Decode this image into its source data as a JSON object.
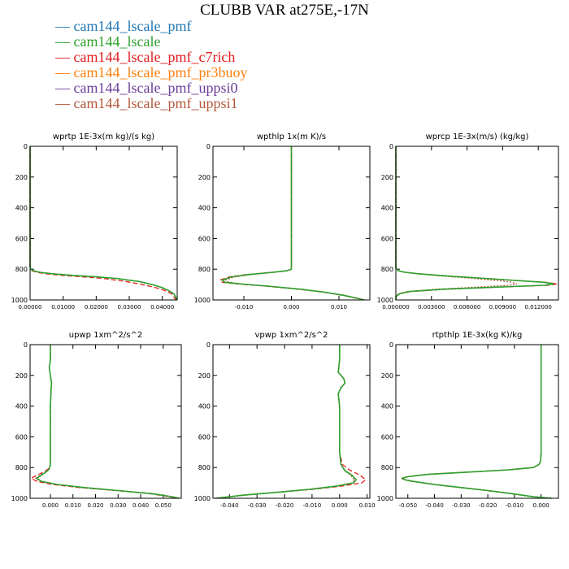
{
  "title": "CLUBB VAR at275E,-17N",
  "legend": [
    {
      "name": "cam144_lscale_pmf",
      "color": "#1f77b4",
      "dash": "solid"
    },
    {
      "name": "cam144_lscale",
      "color": "#2ca02c",
      "dash": "dashed"
    },
    {
      "name": "cam144_lscale_pmf_c7rich",
      "color": "#e41a1c",
      "dash": "dotted"
    },
    {
      "name": "cam144_lscale_pmf_pr3buoy",
      "color": "#ff7f0e",
      "dash": "solid"
    },
    {
      "name": "cam144_lscale_pmf_uppsi0",
      "color": "#6a3d9a",
      "dash": "solid"
    },
    {
      "name": "cam144_lscale_pmf_uppsi1",
      "color": "#b5573a",
      "dash": "solid"
    }
  ],
  "chart_data": [
    {
      "type": "line",
      "title": "wprtp  1E-3x(m kg)/(s kg)",
      "xlim": [
        0,
        0.0445
      ],
      "ylim": [
        1000,
        0
      ],
      "xticks": [
        "0.00000",
        "0.01000",
        "0.02000",
        "0.03000",
        "0.04000"
      ],
      "xtick_values": [
        0,
        0.01,
        0.02,
        0.03,
        0.04
      ],
      "yticks": [
        0,
        200,
        400,
        600,
        800,
        1000
      ],
      "y": [
        0,
        100,
        200,
        300,
        400,
        500,
        600,
        700,
        780,
        800,
        810,
        820,
        830,
        840,
        850,
        860,
        880,
        900,
        920,
        940,
        960,
        980,
        990,
        1000
      ],
      "series": [
        {
          "values": [
            0,
            0,
            0,
            0,
            0,
            0,
            0,
            0,
            0,
            0.0002,
            0.001,
            0.003,
            0.007,
            0.013,
            0.02,
            0.026,
            0.033,
            0.037,
            0.04,
            0.042,
            0.0435,
            0.044,
            0.0442,
            0.0443
          ]
        },
        {
          "values": [
            0,
            0,
            0,
            0,
            0,
            0,
            0,
            0,
            0,
            0.0001,
            0.0006,
            0.002,
            0.005,
            0.01,
            0.016,
            0.022,
            0.029,
            0.034,
            0.038,
            0.041,
            0.0428,
            0.0435,
            0.0438,
            0.044
          ]
        },
        {
          "values": [
            0,
            0,
            0,
            0,
            0,
            0,
            0,
            0,
            0,
            0.0002,
            0.001,
            0.003,
            0.007,
            0.013,
            0.02,
            0.026,
            0.033,
            0.037,
            0.04,
            0.042,
            0.0435,
            0.044,
            0.0442,
            0.0443
          ]
        }
      ]
    },
    {
      "type": "line",
      "title": "wpthlp  1x(m K)/s",
      "xlim": [
        -0.0165,
        0.0165
      ],
      "ylim": [
        1000,
        0
      ],
      "xticks": [
        "-0.010",
        "0.000",
        "0.010"
      ],
      "xtick_values": [
        -0.01,
        0,
        0.01
      ],
      "yticks": [
        0,
        200,
        400,
        600,
        800,
        1000
      ],
      "y": [
        0,
        100,
        200,
        300,
        400,
        500,
        600,
        700,
        780,
        800,
        810,
        820,
        835,
        850,
        870,
        885,
        895,
        910,
        930,
        950,
        970,
        990,
        1000
      ],
      "series": [
        {
          "values": [
            0,
            0,
            0,
            0,
            0,
            0,
            0,
            0,
            0,
            0,
            -0.001,
            -0.004,
            -0.009,
            -0.0125,
            -0.0145,
            -0.014,
            -0.011,
            -0.005,
            0.002,
            0.007,
            0.011,
            0.014,
            0.0152
          ]
        },
        {
          "values": [
            0,
            0,
            0,
            0,
            0,
            0,
            0,
            0,
            0,
            0,
            -0.001,
            -0.004,
            -0.0095,
            -0.013,
            -0.015,
            -0.0145,
            -0.0115,
            -0.0055,
            0.0015,
            0.0068,
            0.0108,
            0.0138,
            0.015
          ]
        },
        {
          "values": [
            0,
            0,
            0,
            0,
            0,
            0,
            0,
            0,
            0,
            0,
            -0.001,
            -0.0035,
            -0.0085,
            -0.012,
            -0.0138,
            -0.0132,
            -0.0105,
            -0.0048,
            0.002,
            0.0072,
            0.0112,
            0.0142,
            0.0155
          ]
        }
      ]
    },
    {
      "type": "line",
      "title": "wprcp  1E-3x(m/s) (kg/kg)",
      "xlim": [
        0,
        0.0137
      ],
      "ylim": [
        1000,
        0
      ],
      "xticks": [
        "0.000000",
        "0.003000",
        "0.006000",
        "0.009000",
        "0.012000"
      ],
      "xtick_values": [
        0,
        0.003,
        0.006,
        0.009,
        0.012
      ],
      "yticks": [
        0,
        200,
        400,
        600,
        800,
        1000
      ],
      "y": [
        0,
        100,
        200,
        300,
        400,
        500,
        600,
        700,
        790,
        810,
        820,
        830,
        845,
        860,
        875,
        885,
        895,
        905,
        915,
        930,
        945,
        960,
        980,
        1000
      ],
      "series": [
        {
          "values": [
            0,
            0,
            0,
            0,
            0,
            0,
            0,
            0,
            0,
            0.0002,
            0.0008,
            0.002,
            0.0045,
            0.0075,
            0.0105,
            0.0125,
            0.0133,
            0.0125,
            0.009,
            0.004,
            0.0012,
            0.0003,
            0,
            0
          ]
        },
        {
          "values": [
            0,
            0,
            0,
            0,
            0,
            0,
            0,
            0,
            0,
            0.0002,
            0.0008,
            0.002,
            0.0045,
            0.0075,
            0.0105,
            0.0126,
            0.0136,
            0.0128,
            0.0092,
            0.0042,
            0.0013,
            0.0003,
            0,
            0
          ]
        },
        {
          "values": [
            0,
            0,
            0,
            0,
            0,
            0,
            0,
            0,
            0,
            0.0002,
            0.0007,
            0.0018,
            0.004,
            0.0065,
            0.0088,
            0.0098,
            0.0102,
            0.0095,
            0.0072,
            0.0034,
            0.001,
            0.0002,
            0,
            0
          ]
        }
      ]
    },
    {
      "type": "line",
      "title": "upwp  1xm^2/s^2",
      "xlim": [
        -0.009,
        0.058
      ],
      "ylim": [
        1000,
        0
      ],
      "xticks": [
        "0.000",
        "0.010",
        "0.020",
        "0.030",
        "0.040",
        "0.050"
      ],
      "xtick_values": [
        0,
        0.01,
        0.02,
        0.03,
        0.04,
        0.05
      ],
      "yticks": [
        0,
        200,
        400,
        600,
        800,
        1000
      ],
      "y": [
        0,
        100,
        150,
        200,
        250,
        300,
        400,
        500,
        600,
        700,
        780,
        810,
        830,
        850,
        870,
        890,
        910,
        930,
        950,
        970,
        990,
        1000
      ],
      "series": [
        {
          "values": [
            0,
            0,
            -0.0005,
            0,
            0.0005,
            0.0003,
            0,
            0,
            0,
            0,
            0,
            -0.0005,
            -0.002,
            -0.004,
            -0.006,
            -0.004,
            0.003,
            0.015,
            0.03,
            0.045,
            0.054,
            0.057
          ]
        },
        {
          "values": [
            0,
            0,
            -0.0005,
            0,
            0.0005,
            0.0003,
            0,
            0,
            0,
            0,
            0,
            -0.001,
            -0.003,
            -0.006,
            -0.0085,
            -0.006,
            0.001,
            0.013,
            0.029,
            0.044,
            0.053,
            0.056
          ]
        },
        {
          "values": [
            0,
            0,
            -0.0005,
            0,
            0.0005,
            0.0003,
            0,
            0,
            0,
            0,
            0,
            -0.0005,
            -0.002,
            -0.0045,
            -0.0065,
            -0.0045,
            0.0025,
            0.0145,
            0.0295,
            0.0448,
            0.0538,
            0.0568
          ]
        }
      ]
    },
    {
      "type": "line",
      "title": "vpwp  1xm^2/s^2",
      "xlim": [
        -0.046,
        0.011
      ],
      "ylim": [
        1000,
        0
      ],
      "xticks": [
        "-0.040",
        "-0.030",
        "-0.020",
        "-0.010",
        "0.000",
        "0.010"
      ],
      "xtick_values": [
        -0.04,
        -0.03,
        -0.02,
        -0.01,
        0,
        0.01
      ],
      "yticks": [
        0,
        200,
        400,
        600,
        800,
        1000
      ],
      "y": [
        0,
        100,
        180,
        220,
        250,
        280,
        320,
        400,
        500,
        600,
        700,
        780,
        820,
        850,
        880,
        900,
        920,
        940,
        960,
        980,
        1000
      ],
      "series": [
        {
          "values": [
            0,
            0,
            -0.0005,
            0.0015,
            0.002,
            0.0005,
            -0.0005,
            0,
            0,
            0,
            0,
            0.0005,
            0.002,
            0.0045,
            0.006,
            0.005,
            -0.001,
            -0.01,
            -0.022,
            -0.035,
            -0.045
          ]
        },
        {
          "values": [
            0,
            0,
            -0.0005,
            0.0015,
            0.002,
            0.0005,
            -0.0005,
            0,
            0,
            0,
            0,
            0.001,
            0.004,
            0.0075,
            0.0095,
            0.008,
            0.001,
            -0.009,
            -0.022,
            -0.035,
            -0.045
          ]
        },
        {
          "values": [
            0,
            0,
            -0.0005,
            0.0015,
            0.002,
            0.0005,
            -0.0005,
            0,
            0,
            0,
            0,
            0.0005,
            0.0018,
            0.004,
            0.0055,
            0.0045,
            -0.0012,
            -0.0105,
            -0.0225,
            -0.0352,
            -0.0452
          ]
        }
      ]
    },
    {
      "type": "line",
      "title": "rtpthlp  1E-3x(kg K)/kg",
      "xlim": [
        -0.0545,
        0.0065
      ],
      "ylim": [
        1000,
        0
      ],
      "xticks": [
        "-0.050",
        "-0.040",
        "-0.030",
        "-0.020",
        "-0.010",
        "0.000"
      ],
      "xtick_values": [
        -0.05,
        -0.04,
        -0.03,
        -0.02,
        -0.01,
        0
      ],
      "yticks": [
        0,
        200,
        400,
        600,
        800,
        1000
      ],
      "y": [
        0,
        100,
        200,
        300,
        400,
        500,
        600,
        700,
        760,
        780,
        800,
        815,
        830,
        845,
        860,
        870,
        880,
        890,
        910,
        930,
        950,
        970,
        990,
        1000
      ],
      "series": [
        {
          "values": [
            0,
            0,
            0,
            0,
            0,
            0,
            0,
            0,
            -0.0002,
            -0.0008,
            -0.003,
            -0.012,
            -0.028,
            -0.043,
            -0.05,
            -0.052,
            -0.051,
            -0.048,
            -0.04,
            -0.03,
            -0.02,
            -0.011,
            -0.003,
            0.004
          ]
        },
        {
          "values": [
            0,
            0,
            0,
            0,
            0,
            0,
            0,
            0,
            -0.0002,
            -0.0008,
            -0.003,
            -0.012,
            -0.028,
            -0.043,
            -0.05,
            -0.052,
            -0.051,
            -0.048,
            -0.04,
            -0.03,
            -0.02,
            -0.011,
            -0.003,
            0.004
          ]
        },
        {
          "values": [
            0,
            0,
            0,
            0,
            0,
            0,
            0,
            0,
            -0.0002,
            -0.0008,
            -0.0032,
            -0.0125,
            -0.029,
            -0.044,
            -0.0505,
            -0.0525,
            -0.0515,
            -0.0485,
            -0.0405,
            -0.0305,
            -0.0205,
            -0.0112,
            -0.0032,
            0.0038
          ]
        }
      ]
    }
  ]
}
